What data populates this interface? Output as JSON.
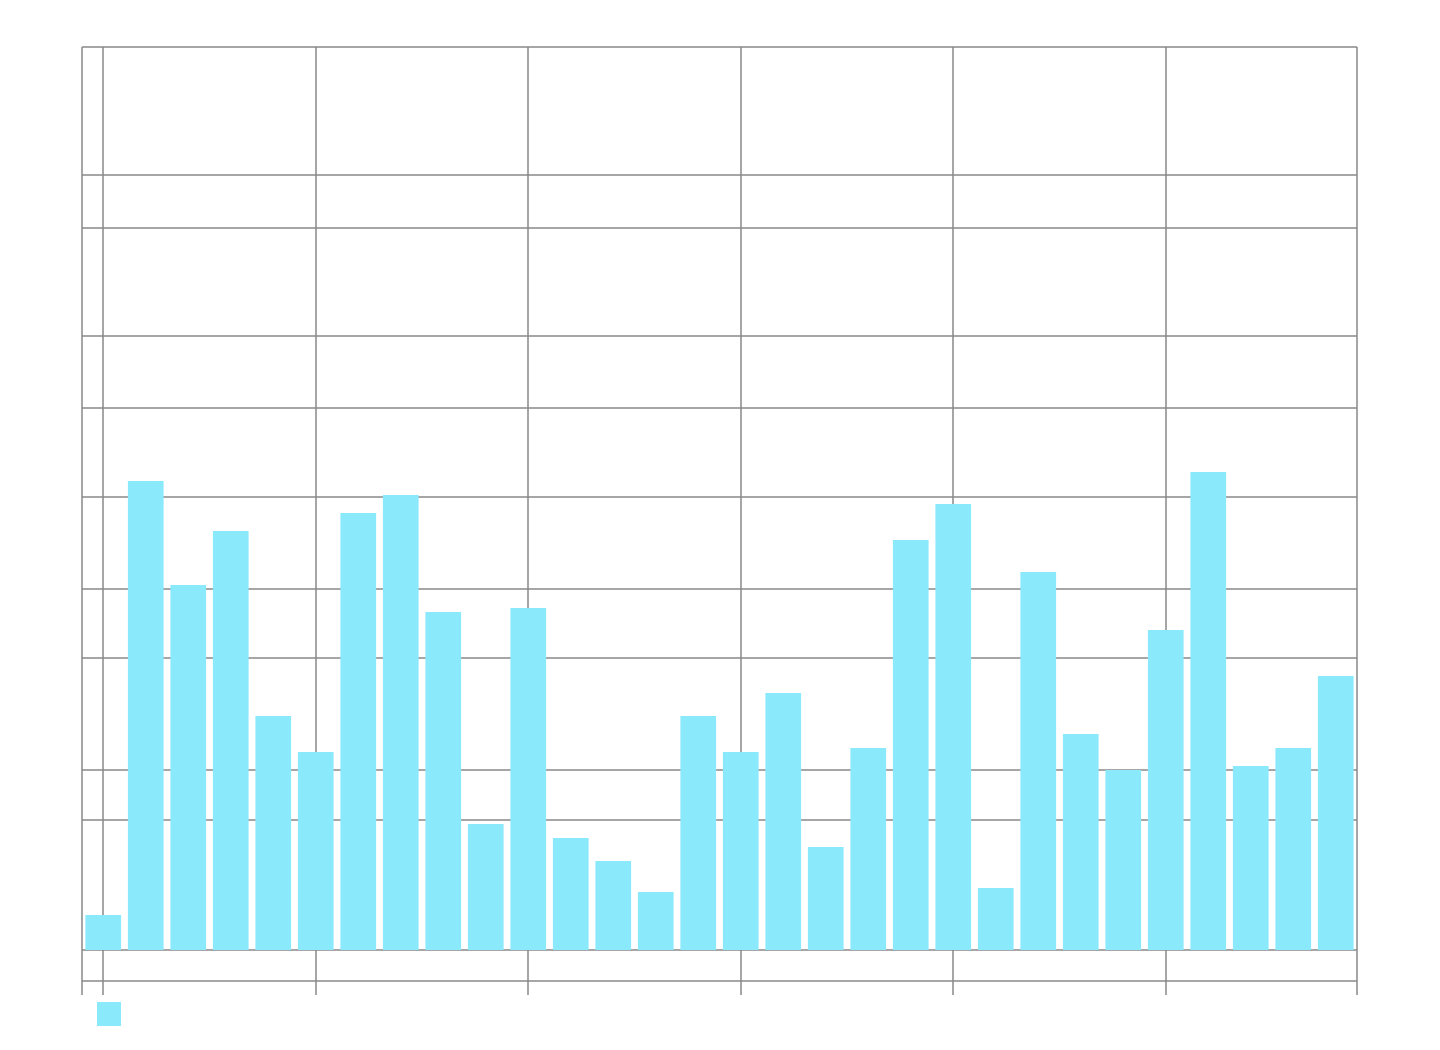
{
  "chart_data": {
    "type": "bar",
    "categories": [
      null,
      null,
      null,
      null,
      null,
      null,
      null,
      null,
      null,
      null,
      null,
      null,
      null,
      null,
      null,
      null,
      null,
      null,
      null,
      null,
      null,
      null,
      null,
      null,
      null,
      null,
      null,
      null,
      null,
      null
    ],
    "values": [
      35,
      469,
      365,
      419,
      234,
      198,
      437,
      455,
      338,
      126,
      342,
      112,
      89,
      58,
      234,
      198,
      257,
      103,
      202,
      410,
      446,
      62,
      378,
      216,
      180,
      320,
      478,
      184,
      202,
      274
    ],
    "color": "#8aeafc",
    "ylim": [
      -31,
      903
    ],
    "yticks": [
      -31,
      0,
      130,
      180,
      292,
      361,
      453,
      542,
      614,
      722,
      775,
      903
    ],
    "xlim": [
      0,
      1275
    ],
    "xticks": [
      0,
      21,
      234,
      446,
      659,
      871,
      1084,
      1275
    ],
    "grid": true,
    "legend": true
  }
}
